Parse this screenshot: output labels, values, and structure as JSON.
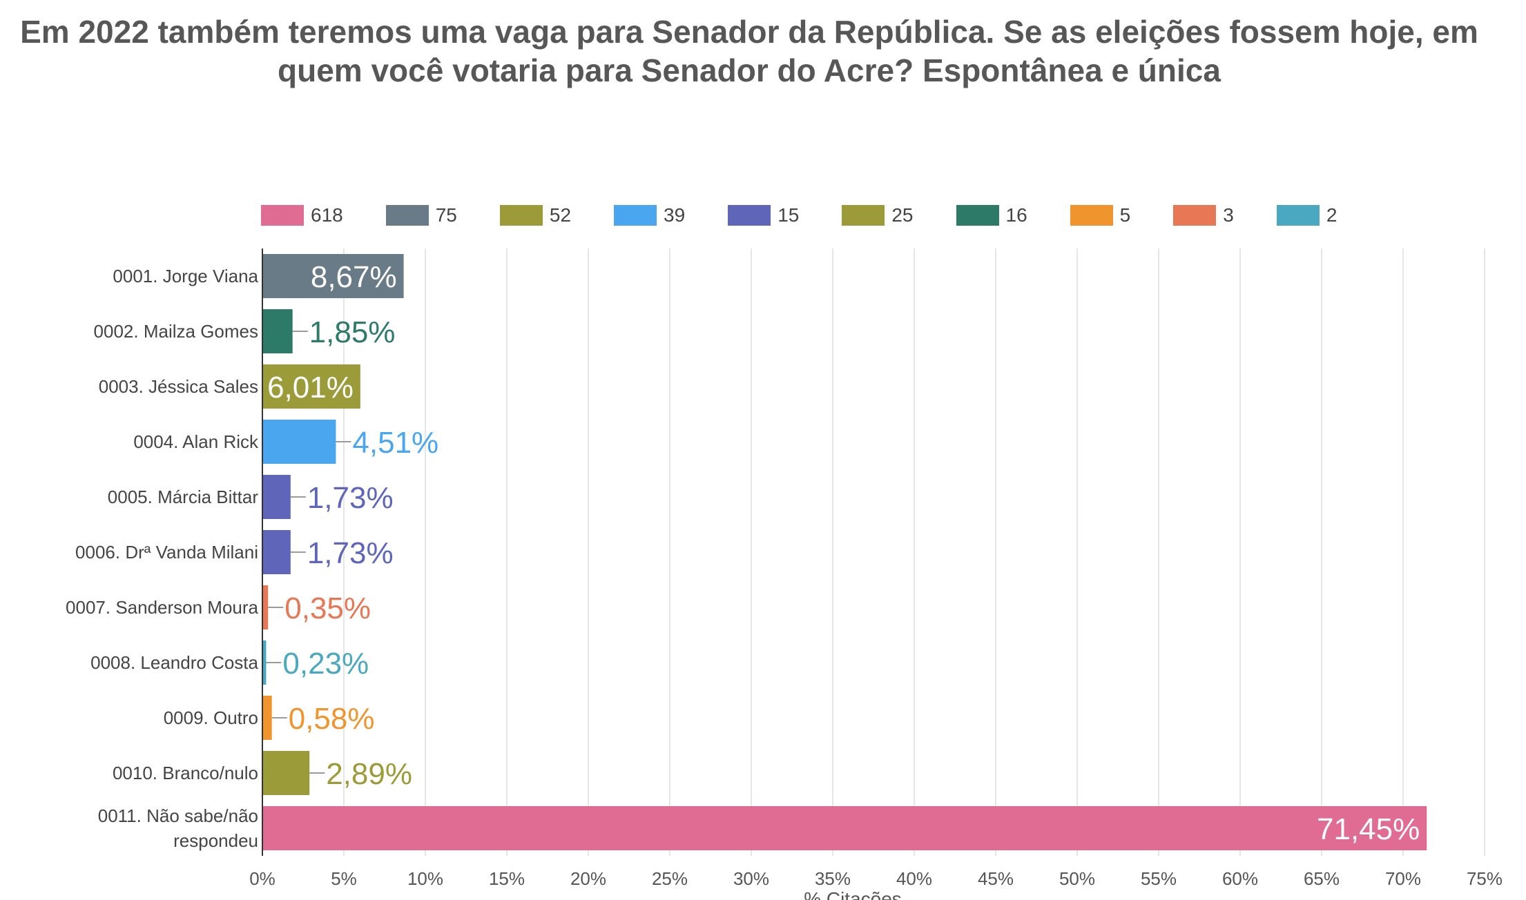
{
  "chart_data": {
    "type": "bar",
    "orientation": "horizontal",
    "title": "Em 2022 também teremos uma vaga para Senador da República. Se as eleições fossem hoje, em quem você votaria para Senador do Acre? Espontânea e única",
    "xlabel": "% Citações",
    "ylabel": "",
    "xlim": [
      0,
      75
    ],
    "x_ticks": [
      "0%",
      "5%",
      "10%",
      "15%",
      "20%",
      "25%",
      "30%",
      "35%",
      "40%",
      "45%",
      "50%",
      "55%",
      "60%",
      "65%",
      "70%",
      "75%"
    ],
    "grid": "vertical",
    "legend_position": "top",
    "legend": [
      {
        "label": "618",
        "color": "#e06c94"
      },
      {
        "label": "75",
        "color": "#6a7b88"
      },
      {
        "label": "52",
        "color": "#9b9b3a"
      },
      {
        "label": "39",
        "color": "#4aa7ef"
      },
      {
        "label": "15",
        "color": "#5f66ba"
      },
      {
        "label": "25",
        "color": "#9b9b3a"
      },
      {
        "label": "16",
        "color": "#2e7a68"
      },
      {
        "label": "5",
        "color": "#f0952e"
      },
      {
        "label": "3",
        "color": "#e87855"
      },
      {
        "label": "2",
        "color": "#4aa8c0"
      }
    ],
    "bars": [
      {
        "category": [
          "0001. Jorge Viana"
        ],
        "value": 8.67,
        "label": "8,67%",
        "color": "#6a7b88",
        "label_inside": true
      },
      {
        "category": [
          "0002. Mailza Gomes"
        ],
        "value": 1.85,
        "label": "1,85%",
        "color": "#2e7a68",
        "label_inside": false
      },
      {
        "category": [
          "0003. Jéssica Sales"
        ],
        "value": 6.01,
        "label": "6,01%",
        "color": "#9b9b3a",
        "label_inside": true
      },
      {
        "category": [
          "0004. Alan Rick"
        ],
        "value": 4.51,
        "label": "4,51%",
        "color": "#4aa7ef",
        "label_inside": false
      },
      {
        "category": [
          "0005. Márcia Bittar"
        ],
        "value": 1.73,
        "label": "1,73%",
        "color": "#5f66ba",
        "label_inside": false
      },
      {
        "category": [
          "0006. Drª Vanda Milani"
        ],
        "value": 1.73,
        "label": "1,73%",
        "color": "#5f66ba",
        "label_inside": false
      },
      {
        "category": [
          "0007. Sanderson Moura"
        ],
        "value": 0.35,
        "label": "0,35%",
        "color": "#e87855",
        "label_inside": false
      },
      {
        "category": [
          "0008. Leandro Costa"
        ],
        "value": 0.23,
        "label": "0,23%",
        "color": "#4aa8c0",
        "label_inside": false
      },
      {
        "category": [
          "0009. Outro"
        ],
        "value": 0.58,
        "label": "0,58%",
        "color": "#f0952e",
        "label_inside": false
      },
      {
        "category": [
          "0010. Branco/nulo"
        ],
        "value": 2.89,
        "label": "2,89%",
        "color": "#9b9b3a",
        "label_inside": false
      },
      {
        "category": [
          "0011. Não sabe/não",
          "respondeu"
        ],
        "value": 71.45,
        "label": "71,45%",
        "color": "#e06c94",
        "label_inside": true
      }
    ]
  }
}
